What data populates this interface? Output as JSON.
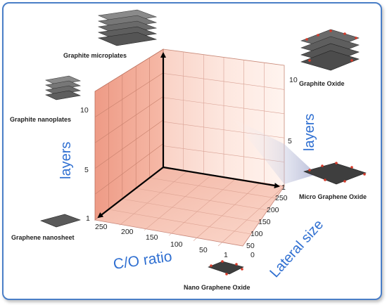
{
  "labels": {
    "graphite_microplates": "Graphite microplates",
    "graphite_nanoplates": "Graphite nanoplates",
    "graphene_nanosheet": "Graphene nanosheet",
    "graphite_oxide": "Graphite Oxide",
    "micro_graphene_oxide": "Micro Graphene Oxide",
    "nano_graphene_oxide": "Nano Graphene Oxide"
  },
  "axes": {
    "left_title": "layers",
    "right_title": "layers",
    "co_title": "C/O ratio",
    "lateral_title": "Lateral size",
    "left_ticks": [
      "10",
      "5",
      "1"
    ],
    "right_ticks": [
      "10",
      "5",
      "1"
    ],
    "co_ticks": [
      "250",
      "200",
      "150",
      "100",
      "50",
      "1"
    ],
    "lateral_ticks": [
      "250",
      "200",
      "150",
      "100",
      "50",
      "0"
    ]
  },
  "colors": {
    "frame": "#4a7ec7",
    "axis_title": "#2f6fd1",
    "wall": "#f2a996",
    "floor": "#f6c2b4"
  }
}
